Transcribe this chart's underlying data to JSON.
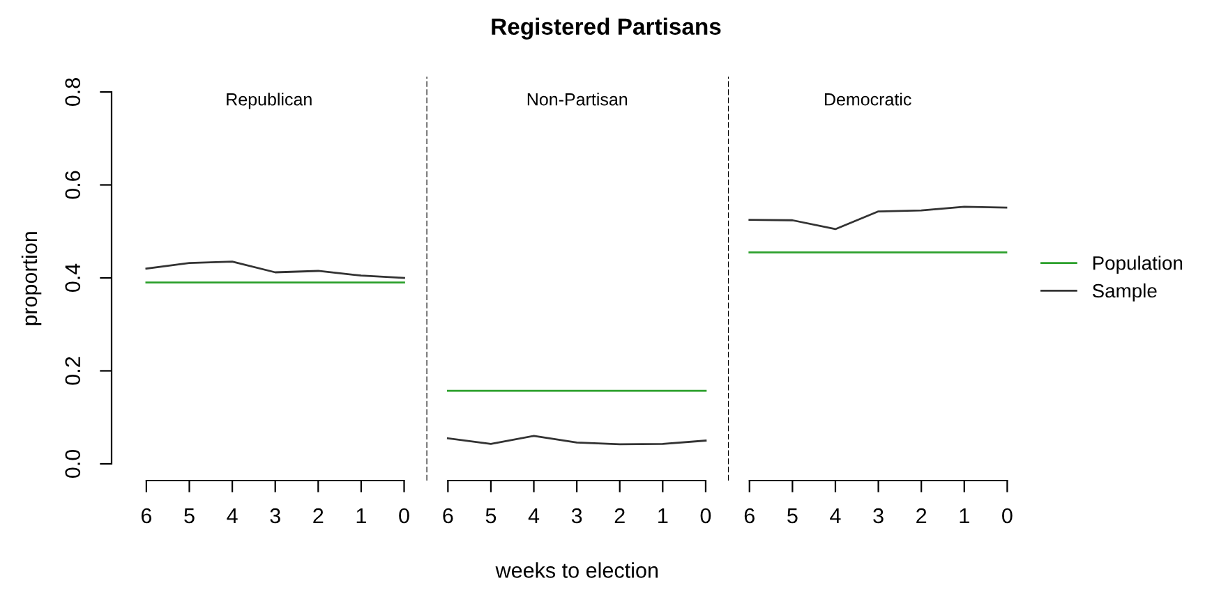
{
  "chart_data": [
    {
      "type": "line",
      "subtitle": "Republican",
      "ylabel": "proportion",
      "x": [
        6,
        5,
        4,
        3,
        2,
        1,
        0
      ],
      "xlim": [
        6.81,
        -0.52
      ],
      "xticks": [
        6,
        5,
        4,
        3,
        2,
        1,
        0
      ],
      "ylim": [
        -0.036,
        0.833
      ],
      "yticks": [
        {
          "value": 0,
          "label": "0.0"
        },
        0.2,
        0.4,
        0.6,
        0.8
      ],
      "grid": false,
      "legend": false,
      "series": [
        {
          "color": "#2ca02c",
          "values": [
            0.39,
            0.39,
            0.39,
            0.39,
            0.39,
            0.39,
            0.39
          ]
        },
        {
          "color": "#333333",
          "values": [
            0.42,
            0.432,
            0.435,
            0.412,
            0.415,
            0.405,
            0.4
          ]
        }
      ]
    },
    {
      "type": "line",
      "title": "Registered Partisans",
      "subtitle": "Non-Partisan",
      "xlabel": "weeks to election",
      "x": [
        6,
        5,
        4,
        3,
        2,
        1,
        0
      ],
      "xlim": [
        6.5,
        -0.52
      ],
      "xticks": [
        6,
        5,
        4,
        3,
        2,
        1,
        0
      ],
      "ylim": [
        -0.036,
        0.833
      ],
      "tick_labels": "x",
      "grid": false,
      "legend": false,
      "ref_lines": [
        {
          "axis": "x",
          "value": 6.5,
          "color": "#000000",
          "line_style": "dashed"
        }
      ],
      "series": [
        {
          "color": "#2ca02c",
          "values": [
            0.157,
            0.157,
            0.157,
            0.157,
            0.157,
            0.157,
            0.157
          ]
        },
        {
          "color": "#333333",
          "values": [
            0.055,
            0.043,
            0.06,
            0.046,
            0.042,
            0.043,
            0.05
          ]
        }
      ]
    },
    {
      "type": "line",
      "subtitle": "Democratic",
      "x": [
        6,
        5,
        4,
        3,
        2,
        1,
        0
      ],
      "xlim": [
        6.5,
        0
      ],
      "xticks": [
        6,
        5,
        4,
        3,
        2,
        1,
        0
      ],
      "ylim": [
        -0.036,
        0.833
      ],
      "tick_labels": "x",
      "grid": false,
      "legend": "right",
      "ref_lines": [
        {
          "axis": "x",
          "value": 6.5,
          "color": "#000000",
          "line_style": "dashed"
        }
      ],
      "series": [
        {
          "name": "Population",
          "color": "#2ca02c",
          "values": [
            0.455,
            0.455,
            0.455,
            0.455,
            0.455,
            0.455,
            0.455
          ]
        },
        {
          "name": "Sample",
          "color": "#333333",
          "values": [
            0.525,
            0.524,
            0.505,
            0.543,
            0.545,
            0.553,
            0.551
          ]
        }
      ]
    }
  ]
}
